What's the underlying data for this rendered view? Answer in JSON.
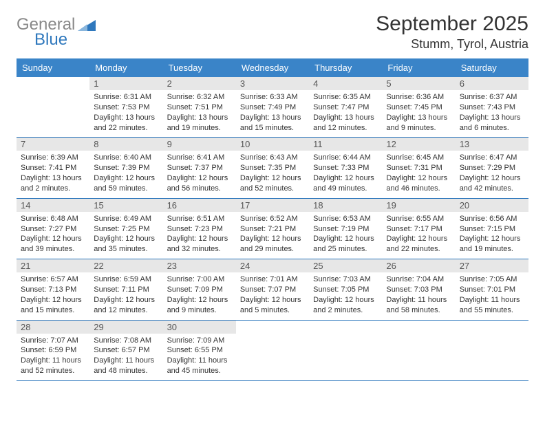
{
  "logo": {
    "gray": "General",
    "blue": "Blue"
  },
  "title": "September 2025",
  "location": "Stumm, Tyrol, Austria",
  "colors": {
    "header_bg": "#3a84c8",
    "header_text": "#ffffff",
    "numbar_bg": "#e7e7e7",
    "week_border": "#2f78bd",
    "logo_gray": "#888888",
    "logo_blue": "#2f78bd"
  },
  "day_headers": [
    "Sunday",
    "Monday",
    "Tuesday",
    "Wednesday",
    "Thursday",
    "Friday",
    "Saturday"
  ],
  "weeks": [
    [
      {
        "num": "",
        "sunrise": "",
        "sunset": "",
        "daylight": ""
      },
      {
        "num": "1",
        "sunrise": "Sunrise: 6:31 AM",
        "sunset": "Sunset: 7:53 PM",
        "daylight": "Daylight: 13 hours and 22 minutes."
      },
      {
        "num": "2",
        "sunrise": "Sunrise: 6:32 AM",
        "sunset": "Sunset: 7:51 PM",
        "daylight": "Daylight: 13 hours and 19 minutes."
      },
      {
        "num": "3",
        "sunrise": "Sunrise: 6:33 AM",
        "sunset": "Sunset: 7:49 PM",
        "daylight": "Daylight: 13 hours and 15 minutes."
      },
      {
        "num": "4",
        "sunrise": "Sunrise: 6:35 AM",
        "sunset": "Sunset: 7:47 PM",
        "daylight": "Daylight: 13 hours and 12 minutes."
      },
      {
        "num": "5",
        "sunrise": "Sunrise: 6:36 AM",
        "sunset": "Sunset: 7:45 PM",
        "daylight": "Daylight: 13 hours and 9 minutes."
      },
      {
        "num": "6",
        "sunrise": "Sunrise: 6:37 AM",
        "sunset": "Sunset: 7:43 PM",
        "daylight": "Daylight: 13 hours and 6 minutes."
      }
    ],
    [
      {
        "num": "7",
        "sunrise": "Sunrise: 6:39 AM",
        "sunset": "Sunset: 7:41 PM",
        "daylight": "Daylight: 13 hours and 2 minutes."
      },
      {
        "num": "8",
        "sunrise": "Sunrise: 6:40 AM",
        "sunset": "Sunset: 7:39 PM",
        "daylight": "Daylight: 12 hours and 59 minutes."
      },
      {
        "num": "9",
        "sunrise": "Sunrise: 6:41 AM",
        "sunset": "Sunset: 7:37 PM",
        "daylight": "Daylight: 12 hours and 56 minutes."
      },
      {
        "num": "10",
        "sunrise": "Sunrise: 6:43 AM",
        "sunset": "Sunset: 7:35 PM",
        "daylight": "Daylight: 12 hours and 52 minutes."
      },
      {
        "num": "11",
        "sunrise": "Sunrise: 6:44 AM",
        "sunset": "Sunset: 7:33 PM",
        "daylight": "Daylight: 12 hours and 49 minutes."
      },
      {
        "num": "12",
        "sunrise": "Sunrise: 6:45 AM",
        "sunset": "Sunset: 7:31 PM",
        "daylight": "Daylight: 12 hours and 46 minutes."
      },
      {
        "num": "13",
        "sunrise": "Sunrise: 6:47 AM",
        "sunset": "Sunset: 7:29 PM",
        "daylight": "Daylight: 12 hours and 42 minutes."
      }
    ],
    [
      {
        "num": "14",
        "sunrise": "Sunrise: 6:48 AM",
        "sunset": "Sunset: 7:27 PM",
        "daylight": "Daylight: 12 hours and 39 minutes."
      },
      {
        "num": "15",
        "sunrise": "Sunrise: 6:49 AM",
        "sunset": "Sunset: 7:25 PM",
        "daylight": "Daylight: 12 hours and 35 minutes."
      },
      {
        "num": "16",
        "sunrise": "Sunrise: 6:51 AM",
        "sunset": "Sunset: 7:23 PM",
        "daylight": "Daylight: 12 hours and 32 minutes."
      },
      {
        "num": "17",
        "sunrise": "Sunrise: 6:52 AM",
        "sunset": "Sunset: 7:21 PM",
        "daylight": "Daylight: 12 hours and 29 minutes."
      },
      {
        "num": "18",
        "sunrise": "Sunrise: 6:53 AM",
        "sunset": "Sunset: 7:19 PM",
        "daylight": "Daylight: 12 hours and 25 minutes."
      },
      {
        "num": "19",
        "sunrise": "Sunrise: 6:55 AM",
        "sunset": "Sunset: 7:17 PM",
        "daylight": "Daylight: 12 hours and 22 minutes."
      },
      {
        "num": "20",
        "sunrise": "Sunrise: 6:56 AM",
        "sunset": "Sunset: 7:15 PM",
        "daylight": "Daylight: 12 hours and 19 minutes."
      }
    ],
    [
      {
        "num": "21",
        "sunrise": "Sunrise: 6:57 AM",
        "sunset": "Sunset: 7:13 PM",
        "daylight": "Daylight: 12 hours and 15 minutes."
      },
      {
        "num": "22",
        "sunrise": "Sunrise: 6:59 AM",
        "sunset": "Sunset: 7:11 PM",
        "daylight": "Daylight: 12 hours and 12 minutes."
      },
      {
        "num": "23",
        "sunrise": "Sunrise: 7:00 AM",
        "sunset": "Sunset: 7:09 PM",
        "daylight": "Daylight: 12 hours and 9 minutes."
      },
      {
        "num": "24",
        "sunrise": "Sunrise: 7:01 AM",
        "sunset": "Sunset: 7:07 PM",
        "daylight": "Daylight: 12 hours and 5 minutes."
      },
      {
        "num": "25",
        "sunrise": "Sunrise: 7:03 AM",
        "sunset": "Sunset: 7:05 PM",
        "daylight": "Daylight: 12 hours and 2 minutes."
      },
      {
        "num": "26",
        "sunrise": "Sunrise: 7:04 AM",
        "sunset": "Sunset: 7:03 PM",
        "daylight": "Daylight: 11 hours and 58 minutes."
      },
      {
        "num": "27",
        "sunrise": "Sunrise: 7:05 AM",
        "sunset": "Sunset: 7:01 PM",
        "daylight": "Daylight: 11 hours and 55 minutes."
      }
    ],
    [
      {
        "num": "28",
        "sunrise": "Sunrise: 7:07 AM",
        "sunset": "Sunset: 6:59 PM",
        "daylight": "Daylight: 11 hours and 52 minutes."
      },
      {
        "num": "29",
        "sunrise": "Sunrise: 7:08 AM",
        "sunset": "Sunset: 6:57 PM",
        "daylight": "Daylight: 11 hours and 48 minutes."
      },
      {
        "num": "30",
        "sunrise": "Sunrise: 7:09 AM",
        "sunset": "Sunset: 6:55 PM",
        "daylight": "Daylight: 11 hours and 45 minutes."
      },
      {
        "num": "",
        "sunrise": "",
        "sunset": "",
        "daylight": ""
      },
      {
        "num": "",
        "sunrise": "",
        "sunset": "",
        "daylight": ""
      },
      {
        "num": "",
        "sunrise": "",
        "sunset": "",
        "daylight": ""
      },
      {
        "num": "",
        "sunrise": "",
        "sunset": "",
        "daylight": ""
      }
    ]
  ]
}
